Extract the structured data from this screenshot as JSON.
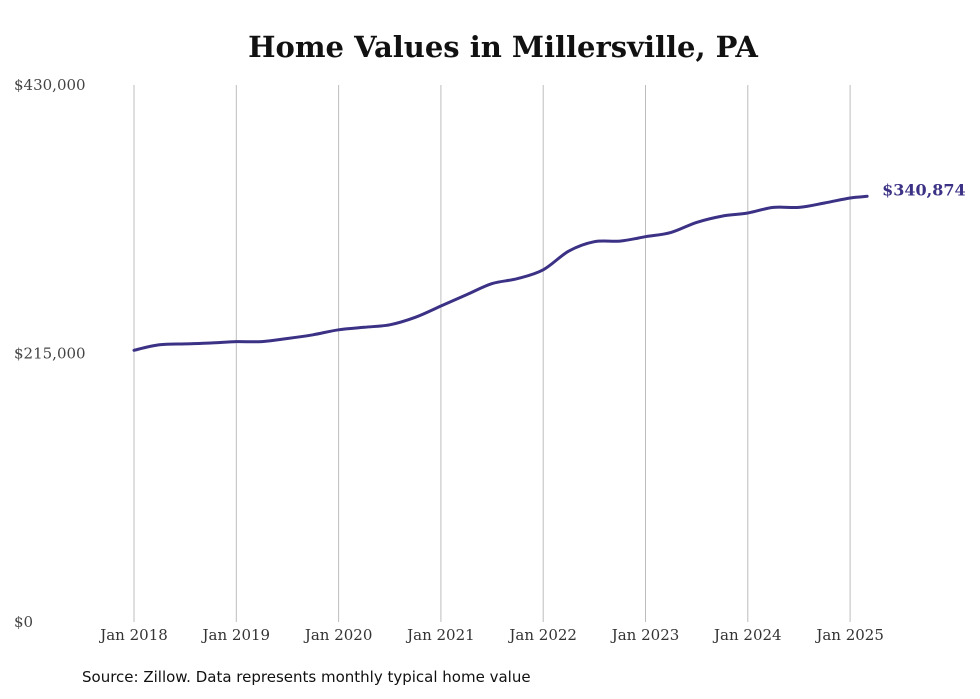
{
  "chart_data": {
    "type": "line",
    "title": "Home Values in Millersville, PA",
    "source": "Source: Zillow. Data represents monthly typical home value",
    "ylim": [
      0,
      430000
    ],
    "y_ticks": [
      {
        "value": 0,
        "label": "$0"
      },
      {
        "value": 215000,
        "label": "$215,000"
      },
      {
        "value": 430000,
        "label": "$430,000"
      }
    ],
    "x_ticks": [
      {
        "value": "2018-01",
        "label": "Jan 2018"
      },
      {
        "value": "2019-01",
        "label": "Jan 2019"
      },
      {
        "value": "2020-01",
        "label": "Jan 2020"
      },
      {
        "value": "2021-01",
        "label": "Jan 2021"
      },
      {
        "value": "2022-01",
        "label": "Jan 2022"
      },
      {
        "value": "2023-01",
        "label": "Jan 2023"
      },
      {
        "value": "2024-01",
        "label": "Jan 2024"
      },
      {
        "value": "2025-01",
        "label": "Jan 2025"
      }
    ],
    "grid": "vertical",
    "line_color": "#3b3185",
    "end_label": "$340,874",
    "series": [
      {
        "points": [
          {
            "x": "2018-01",
            "y": 217600
          },
          {
            "x": "2018-04",
            "y": 222000
          },
          {
            "x": "2018-07",
            "y": 222700
          },
          {
            "x": "2018-10",
            "y": 223400
          },
          {
            "x": "2019-01",
            "y": 224500
          },
          {
            "x": "2019-04",
            "y": 224500
          },
          {
            "x": "2019-07",
            "y": 227000
          },
          {
            "x": "2019-10",
            "y": 230000
          },
          {
            "x": "2020-01",
            "y": 234000
          },
          {
            "x": "2020-04",
            "y": 236000
          },
          {
            "x": "2020-07",
            "y": 238000
          },
          {
            "x": "2020-10",
            "y": 244000
          },
          {
            "x": "2021-01",
            "y": 253000
          },
          {
            "x": "2021-04",
            "y": 262000
          },
          {
            "x": "2021-07",
            "y": 271000
          },
          {
            "x": "2021-10",
            "y": 275000
          },
          {
            "x": "2022-01",
            "y": 282000
          },
          {
            "x": "2022-04",
            "y": 297000
          },
          {
            "x": "2022-07",
            "y": 304500
          },
          {
            "x": "2022-10",
            "y": 305000
          },
          {
            "x": "2023-01",
            "y": 308500
          },
          {
            "x": "2023-04",
            "y": 312000
          },
          {
            "x": "2023-07",
            "y": 320000
          },
          {
            "x": "2023-10",
            "y": 325000
          },
          {
            "x": "2024-01",
            "y": 327500
          },
          {
            "x": "2024-04",
            "y": 332000
          },
          {
            "x": "2024-07",
            "y": 332000
          },
          {
            "x": "2024-10",
            "y": 335500
          },
          {
            "x": "2025-01",
            "y": 339500
          },
          {
            "x": "2025-03",
            "y": 340874
          }
        ]
      }
    ]
  }
}
